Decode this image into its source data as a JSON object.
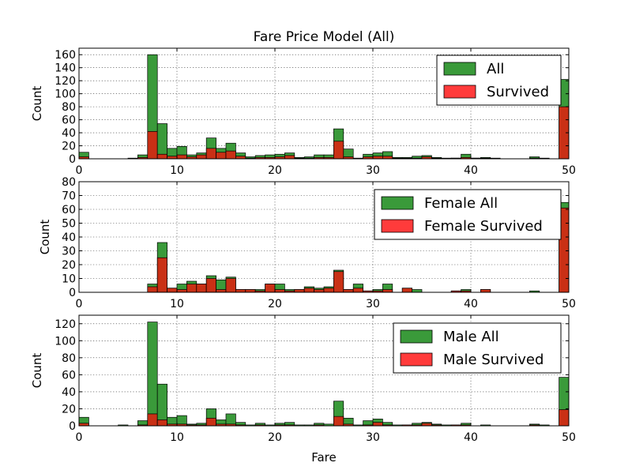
{
  "title": "Fare Price Model (All)",
  "colors": {
    "all": "#3a9a3a",
    "survived": "#ff3b3b",
    "overlap": "#c93015",
    "edge": "#000000"
  },
  "chart_data": [
    {
      "type": "bar",
      "name": "all",
      "title": "Fare Price Model (All)",
      "xlabel": "",
      "ylabel": "Count",
      "xlim": [
        0,
        50
      ],
      "ylim": [
        0,
        170
      ],
      "xticks": [
        "0",
        "10",
        "20",
        "30",
        "40",
        "50"
      ],
      "yticks": [
        "0",
        "20",
        "40",
        "60",
        "80",
        "100",
        "120",
        "140",
        "160"
      ],
      "grid": true,
      "legend": "top-right",
      "legend_entries": [
        "All",
        "Survived"
      ],
      "bin_width": 1,
      "bins_x": [
        0,
        5,
        6,
        7,
        8,
        9,
        10,
        11,
        12,
        13,
        14,
        15,
        16,
        17,
        18,
        19,
        20,
        21,
        22,
        23,
        24,
        25,
        26,
        27,
        28,
        29,
        30,
        31,
        32,
        33,
        34,
        35,
        36,
        37,
        38,
        39,
        40,
        41,
        42,
        46,
        47,
        49
      ],
      "series": [
        {
          "name": "All",
          "values": [
            10,
            1,
            6,
            160,
            54,
            16,
            19,
            6,
            9,
            32,
            16,
            24,
            9,
            3,
            5,
            6,
            7,
            9,
            2,
            3,
            6,
            6,
            46,
            15,
            1,
            7,
            9,
            11,
            2,
            2,
            4,
            5,
            2,
            1,
            1,
            7,
            1,
            2,
            1,
            3,
            1,
            122
          ]
        },
        {
          "name": "Survived",
          "values": [
            3,
            0,
            2,
            42,
            7,
            4,
            6,
            3,
            6,
            16,
            10,
            12,
            4,
            1,
            2,
            2,
            3,
            5,
            1,
            1,
            2,
            2,
            27,
            3,
            0,
            3,
            4,
            4,
            1,
            1,
            1,
            3,
            1,
            0,
            1,
            2,
            1,
            1,
            0,
            1,
            0,
            80
          ]
        }
      ]
    },
    {
      "type": "bar",
      "name": "female",
      "title": "",
      "xlabel": "",
      "ylabel": "Count",
      "xlim": [
        0,
        50
      ],
      "ylim": [
        0,
        80
      ],
      "xticks": [
        "0",
        "10",
        "20",
        "30",
        "40",
        "50"
      ],
      "yticks": [
        "0",
        "10",
        "20",
        "30",
        "40",
        "50",
        "60",
        "70",
        "80"
      ],
      "grid": true,
      "legend": "top-right",
      "legend_entries": [
        "Female All",
        "Female Survived"
      ],
      "bin_width": 1,
      "bins_x": [
        7,
        8,
        9,
        10,
        11,
        12,
        13,
        14,
        15,
        16,
        17,
        18,
        19,
        20,
        21,
        22,
        23,
        24,
        25,
        26,
        27,
        28,
        29,
        30,
        31,
        33,
        34,
        38,
        39,
        41,
        46,
        49
      ],
      "series": [
        {
          "name": "Female All",
          "values": [
            6,
            36,
            3,
            6,
            8,
            6,
            12,
            9,
            11,
            2,
            2,
            2,
            6,
            6,
            2,
            2,
            4,
            3,
            4,
            16,
            2,
            6,
            1,
            2,
            6,
            3,
            2,
            1,
            2,
            2,
            1,
            65
          ]
        },
        {
          "name": "Female Survived",
          "values": [
            4,
            25,
            3,
            2,
            6,
            6,
            10,
            2,
            10,
            2,
            2,
            1,
            6,
            2,
            1,
            2,
            3,
            2,
            3,
            15,
            2,
            3,
            1,
            1,
            2,
            3,
            0,
            1,
            1,
            2,
            0,
            61
          ]
        }
      ]
    },
    {
      "type": "bar",
      "name": "male",
      "title": "",
      "xlabel": "Fare",
      "ylabel": "Count",
      "xlim": [
        0,
        50
      ],
      "ylim": [
        0,
        130
      ],
      "xticks": [
        "0",
        "10",
        "20",
        "30",
        "40",
        "50"
      ],
      "yticks": [
        "0",
        "20",
        "40",
        "60",
        "80",
        "100",
        "120"
      ],
      "grid": true,
      "legend": "top-right",
      "legend_entries": [
        "Male All",
        "Male Survived"
      ],
      "bin_width": 1,
      "bins_x": [
        0,
        4,
        6,
        7,
        8,
        9,
        10,
        11,
        12,
        13,
        14,
        15,
        16,
        17,
        18,
        19,
        20,
        21,
        22,
        23,
        24,
        25,
        26,
        27,
        28,
        29,
        30,
        31,
        32,
        33,
        34,
        35,
        36,
        37,
        38,
        39,
        41,
        46,
        47,
        49
      ],
      "series": [
        {
          "name": "Male All",
          "values": [
            10,
            1,
            6,
            122,
            49,
            10,
            12,
            2,
            3,
            20,
            7,
            14,
            4,
            1,
            3,
            1,
            3,
            4,
            1,
            1,
            3,
            2,
            29,
            9,
            1,
            6,
            8,
            4,
            1,
            1,
            3,
            4,
            2,
            1,
            1,
            3,
            1,
            2,
            1,
            57
          ]
        },
        {
          "name": "Male Survived",
          "values": [
            3,
            0,
            1,
            14,
            7,
            2,
            2,
            1,
            1,
            9,
            2,
            2,
            1,
            0,
            1,
            0,
            1,
            1,
            0,
            0,
            1,
            0,
            11,
            2,
            0,
            1,
            4,
            1,
            0,
            1,
            1,
            3,
            1,
            0,
            1,
            1,
            0,
            1,
            0,
            19
          ]
        }
      ]
    }
  ]
}
